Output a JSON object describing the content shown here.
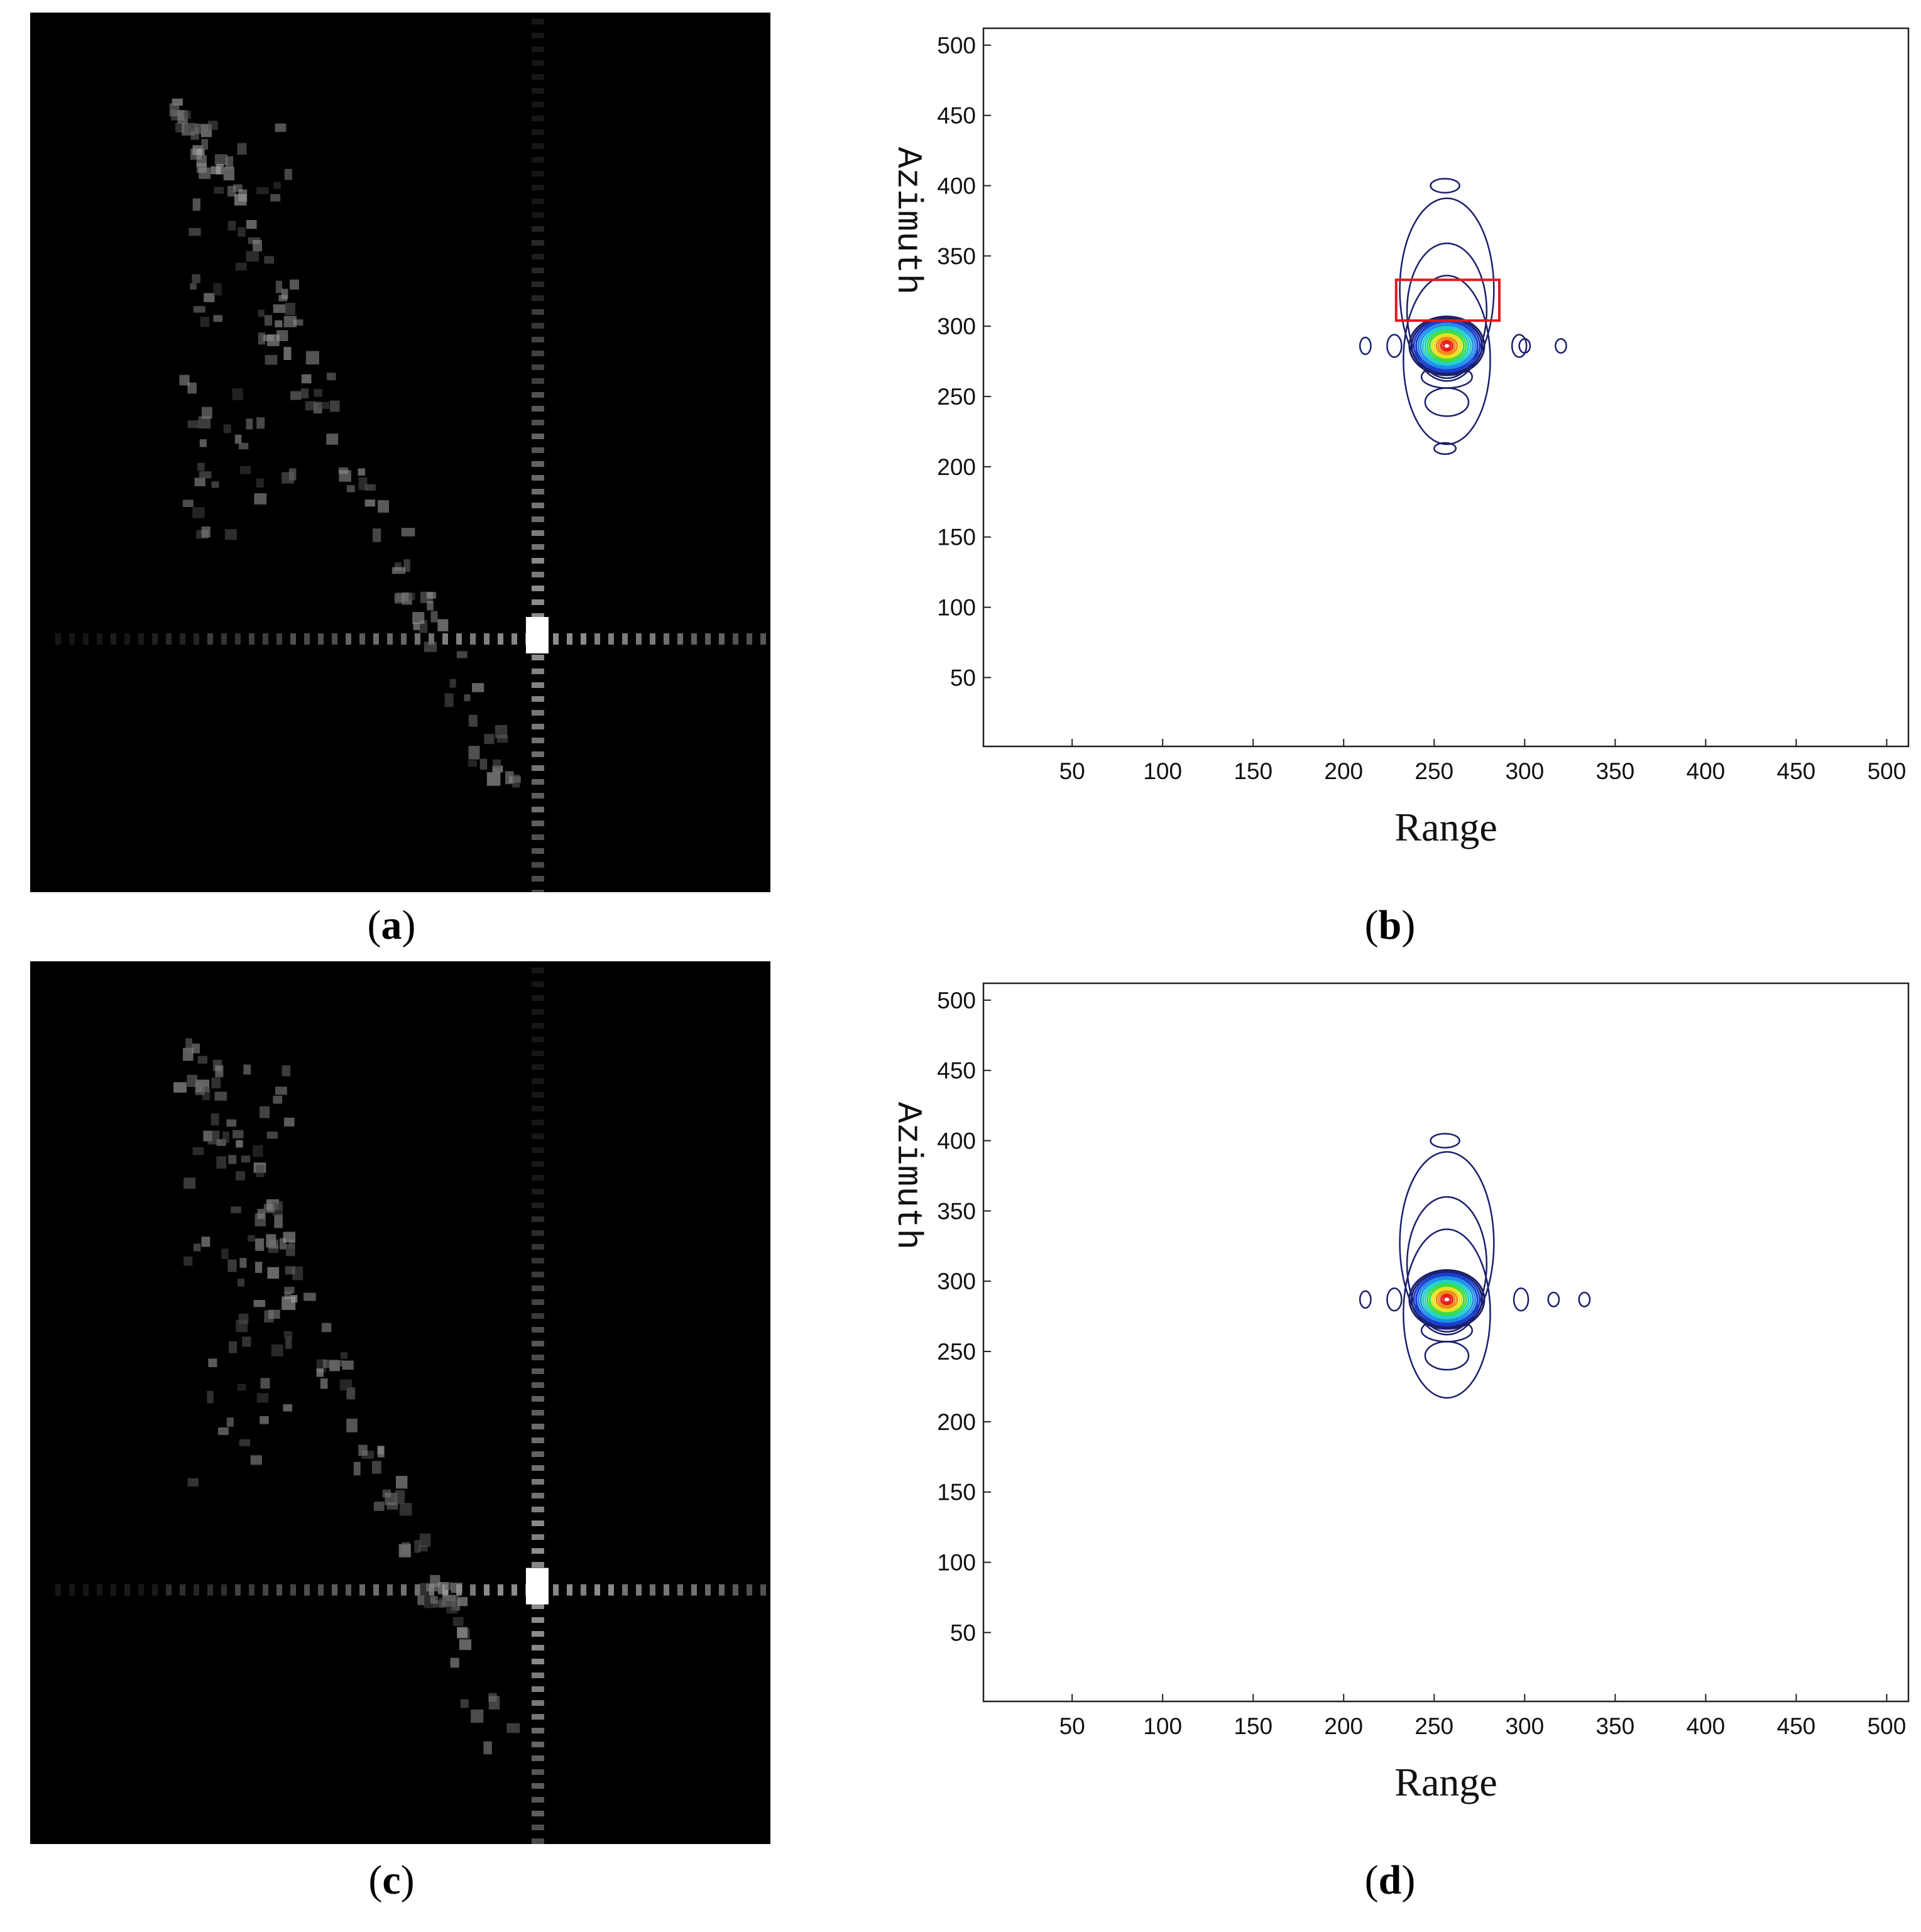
{
  "panels": [
    {
      "id": "a",
      "kind": "image",
      "caption_letter": "a"
    },
    {
      "id": "b",
      "kind": "contour",
      "caption_letter": "b"
    },
    {
      "id": "c",
      "kind": "image",
      "caption_letter": "c"
    },
    {
      "id": "d",
      "kind": "contour",
      "caption_letter": "d"
    }
  ],
  "chart_data": [
    {
      "panel": "b",
      "type": "contour",
      "xlabel": "Range",
      "ylabel": "Azimuth",
      "xlim": [
        1,
        512
      ],
      "ylim": [
        1,
        512
      ],
      "xticks": [
        50,
        100,
        150,
        200,
        250,
        300,
        350,
        400,
        450,
        500
      ],
      "yticks": [
        50,
        100,
        150,
        200,
        250,
        300,
        350,
        400,
        450,
        500
      ],
      "peak": {
        "x": 257,
        "y": 286
      },
      "sidelobes": [
        {
          "x": 256,
          "y": 400,
          "rx": 8,
          "ry": 5
        },
        {
          "x": 256,
          "y": 213,
          "rx": 6,
          "ry": 4
        },
        {
          "x": 212,
          "y": 286,
          "rx": 3,
          "ry": 6
        },
        {
          "x": 228,
          "y": 286,
          "rx": 4,
          "ry": 8
        },
        {
          "x": 297,
          "y": 286,
          "rx": 4,
          "ry": 8
        },
        {
          "x": 300,
          "y": 286,
          "rx": 3,
          "ry": 5
        },
        {
          "x": 320,
          "y": 286,
          "rx": 3,
          "ry": 5
        }
      ],
      "highlight_box": {
        "x0": 229,
        "x1": 286,
        "y0": 304,
        "y1": 333,
        "color": "#e8151b"
      }
    },
    {
      "panel": "d",
      "type": "contour",
      "xlabel": "Range",
      "ylabel": "Azimuth",
      "xlim": [
        1,
        512
      ],
      "ylim": [
        1,
        512
      ],
      "xticks": [
        50,
        100,
        150,
        200,
        250,
        300,
        350,
        400,
        450,
        500
      ],
      "yticks": [
        50,
        100,
        150,
        200,
        250,
        300,
        350,
        400,
        450,
        500
      ],
      "peak": {
        "x": 257,
        "y": 287
      },
      "sidelobes": [
        {
          "x": 256,
          "y": 400,
          "rx": 8,
          "ry": 5
        },
        {
          "x": 212,
          "y": 287,
          "rx": 3,
          "ry": 6
        },
        {
          "x": 228,
          "y": 287,
          "rx": 4,
          "ry": 8
        },
        {
          "x": 298,
          "y": 287,
          "rx": 4,
          "ry": 8
        },
        {
          "x": 316,
          "y": 287,
          "rx": 3,
          "ry": 5
        },
        {
          "x": 333,
          "y": 287,
          "rx": 3,
          "ry": 5
        }
      ]
    }
  ],
  "colors": {
    "contour_outer": "#1a1f6b",
    "colormap": [
      "#1a1f6b",
      "#1a3ccf",
      "#1f8ee8",
      "#20d0c8",
      "#3cdc40",
      "#e8e020",
      "#f08a18",
      "#e81818"
    ],
    "box": "#e8151b"
  }
}
